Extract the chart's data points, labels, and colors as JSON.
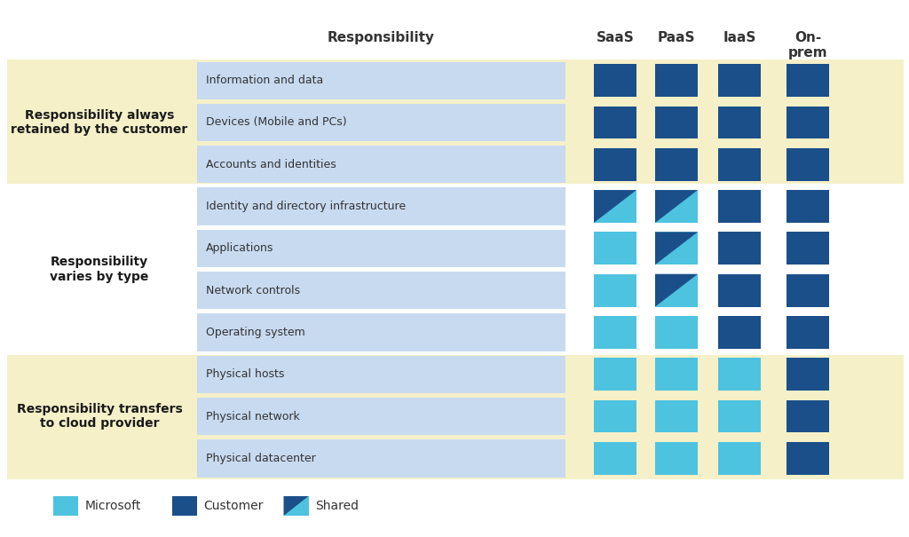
{
  "col_header": "Responsibility",
  "col_headers_right": [
    "SaaS",
    "PaaS",
    "IaaS",
    "On-\nprem"
  ],
  "rows": [
    "Information and data",
    "Devices (Mobile and PCs)",
    "Accounts and identities",
    "Identity and directory infrastructure",
    "Applications",
    "Network controls",
    "Operating system",
    "Physical hosts",
    "Physical network",
    "Physical datacenter"
  ],
  "groups": [
    {
      "label": "Responsibility always\nretained by the customer",
      "rows": [
        0,
        1,
        2
      ]
    },
    {
      "label": "Responsibility\nvaries by type",
      "rows": [
        3,
        4,
        5,
        6
      ]
    },
    {
      "label": "Responsibility transfers\nto cloud provider",
      "rows": [
        7,
        8,
        9
      ]
    }
  ],
  "cell_types": {
    "data": [
      [
        "C",
        "C",
        "C",
        "C"
      ],
      [
        "C",
        "C",
        "C",
        "C"
      ],
      [
        "C",
        "C",
        "C",
        "C"
      ],
      [
        "S",
        "S",
        "C",
        "C"
      ],
      [
        "M",
        "S",
        "C",
        "C"
      ],
      [
        "M",
        "S",
        "C",
        "C"
      ],
      [
        "M",
        "M",
        "C",
        "C"
      ],
      [
        "M",
        "M",
        "M",
        "C"
      ],
      [
        "M",
        "M",
        "M",
        "C"
      ],
      [
        "M",
        "M",
        "M",
        "C"
      ]
    ]
  },
  "colors": {
    "customer": "#1b4f8a",
    "microsoft": "#4dc3e0",
    "background": "#ffffff",
    "group_bg_yellow": "#f5f0c8",
    "group_bg_white": "#ffffff",
    "text_dark": "#333333",
    "text_group": "#1a1a1a",
    "row_label_bg": "#c8daf0"
  },
  "legend": [
    {
      "label": "Microsoft",
      "type": "M"
    },
    {
      "label": "Customer",
      "type": "C"
    },
    {
      "label": "Shared",
      "type": "S"
    }
  ]
}
